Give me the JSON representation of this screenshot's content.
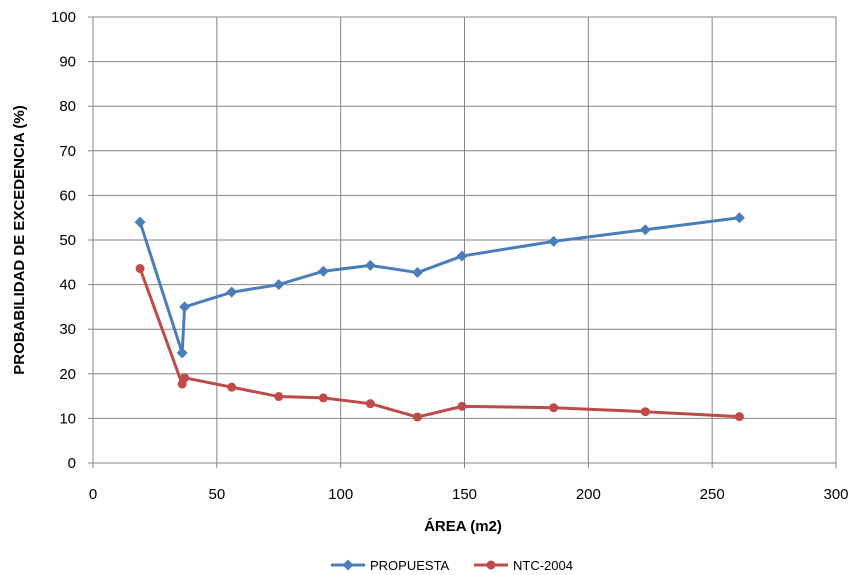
{
  "chart_data": {
    "type": "line",
    "title": "",
    "xlabel": "ÁREA (m2)",
    "ylabel": "PROBABILIDAD DE EXCEDENCIA (%)",
    "xlim": [
      0,
      300
    ],
    "ylim": [
      0,
      100
    ],
    "xticks": [
      0,
      50,
      100,
      150,
      200,
      250,
      300
    ],
    "yticks": [
      0,
      10,
      20,
      30,
      40,
      50,
      60,
      70,
      80,
      90,
      100
    ],
    "grid": true,
    "legend_position": "bottom",
    "series": [
      {
        "name": "PROPUESTA",
        "color": "#4a7ebb",
        "marker": "diamond",
        "x": [
          19,
          36,
          37,
          56,
          75,
          93,
          112,
          131,
          149,
          186,
          223,
          261
        ],
        "y": [
          54.0,
          24.7,
          35.0,
          38.3,
          40.0,
          43.0,
          44.3,
          42.7,
          46.4,
          49.7,
          52.3,
          55.0
        ]
      },
      {
        "name": "NTC-2004",
        "color": "#be4b48",
        "marker": "circle",
        "x": [
          19,
          36,
          37,
          56,
          75,
          93,
          112,
          131,
          149,
          186,
          223,
          261
        ],
        "y": [
          43.6,
          17.7,
          19.1,
          17.0,
          14.9,
          14.6,
          13.3,
          10.3,
          12.7,
          12.4,
          11.5,
          10.4
        ]
      }
    ]
  }
}
